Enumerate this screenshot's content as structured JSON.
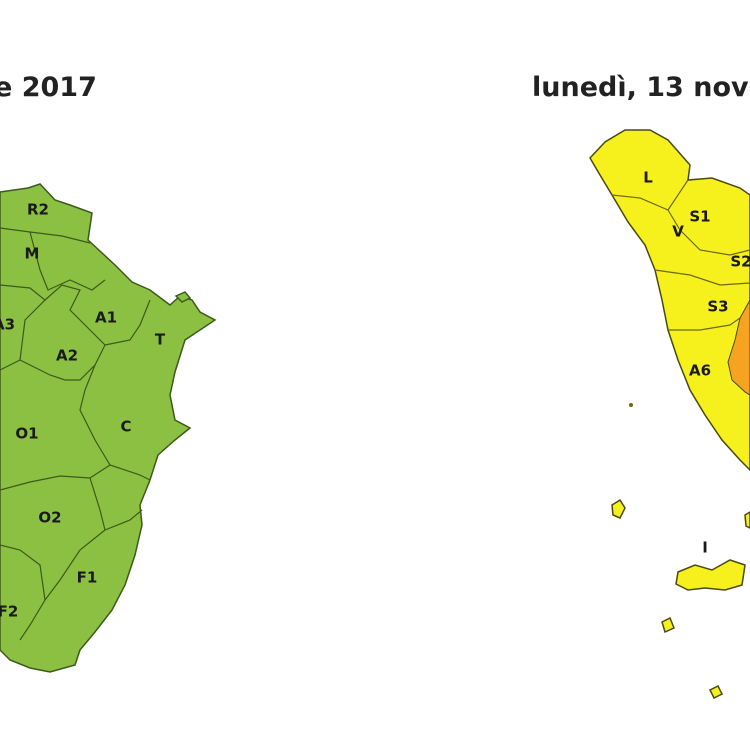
{
  "left_map": {
    "title": "e 2017",
    "zones": [
      "R2",
      "M",
      "A3",
      "A1",
      "A2",
      "T",
      "O1",
      "C",
      "O2",
      "F1",
      "F2"
    ]
  },
  "right_map": {
    "title": "lunedì, 13 nov",
    "zones": [
      "L",
      "S1",
      "V",
      "S2",
      "S3",
      "A6",
      "I"
    ]
  }
}
